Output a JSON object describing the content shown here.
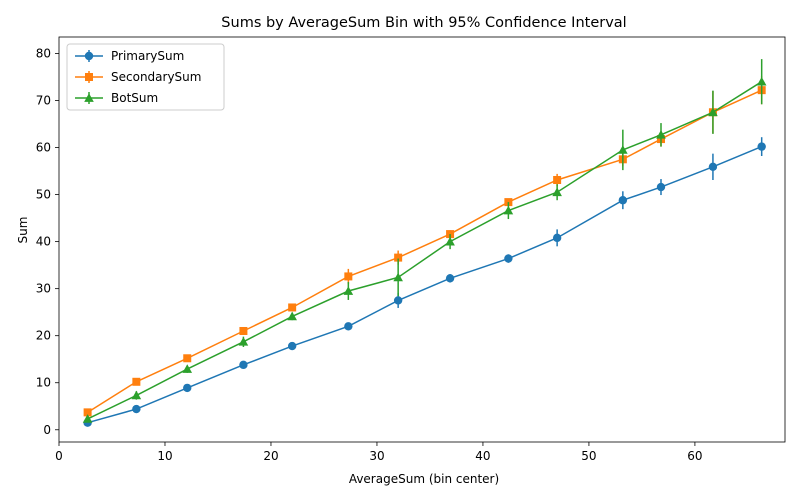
{
  "chart_data": {
    "type": "line",
    "title": "Sums by AverageSum Bin with 95% Confidence Interval",
    "xlabel": "AverageSum (bin center)",
    "ylabel": "Sum",
    "xlim": [
      0,
      68.5
    ],
    "ylim": [
      -2.6,
      83.5
    ],
    "xticks": [
      0,
      10,
      20,
      30,
      40,
      50,
      60
    ],
    "yticks": [
      0,
      10,
      20,
      30,
      40,
      50,
      60,
      70,
      80
    ],
    "grid": false,
    "legend_position": "top-left",
    "x": [
      2.7,
      7.3,
      12.1,
      17.4,
      22.0,
      27.3,
      32.0,
      36.9,
      42.4,
      47.0,
      53.2,
      56.8,
      61.7,
      66.3
    ],
    "series": [
      {
        "name": "PrimarySum",
        "color": "#1f77b4",
        "marker": "circle",
        "values": [
          1.5,
          4.4,
          8.9,
          13.8,
          17.8,
          22.0,
          27.5,
          32.2,
          36.4,
          40.8,
          48.8,
          51.6,
          55.9,
          60.2
        ],
        "err": [
          0.4,
          0.5,
          0.6,
          0.7,
          0.6,
          0.7,
          1.6,
          0.9,
          0.9,
          1.8,
          1.9,
          1.7,
          2.8,
          2.0
        ]
      },
      {
        "name": "SecondarySum",
        "color": "#ff7f0e",
        "marker": "square",
        "values": [
          3.7,
          10.2,
          15.2,
          21.0,
          26.0,
          32.6,
          36.6,
          41.6,
          48.4,
          53.1,
          57.5,
          61.8,
          67.5,
          72.2
        ],
        "err": [
          0.5,
          0.6,
          0.6,
          0.7,
          0.7,
          1.6,
          1.5,
          0.8,
          0.7,
          1.3,
          1.5,
          1.6,
          4.5,
          3.0
        ]
      },
      {
        "name": "BotSum",
        "color": "#2ca02c",
        "marker": "triangle",
        "values": [
          2.3,
          7.3,
          12.9,
          18.7,
          24.1,
          29.5,
          32.4,
          40.0,
          46.6,
          50.5,
          59.5,
          62.7,
          67.5,
          74.0
        ],
        "err": [
          0.6,
          0.9,
          0.8,
          1.1,
          0.8,
          1.9,
          4.0,
          1.6,
          1.8,
          1.7,
          4.3,
          2.5,
          4.6,
          4.8
        ]
      }
    ]
  }
}
